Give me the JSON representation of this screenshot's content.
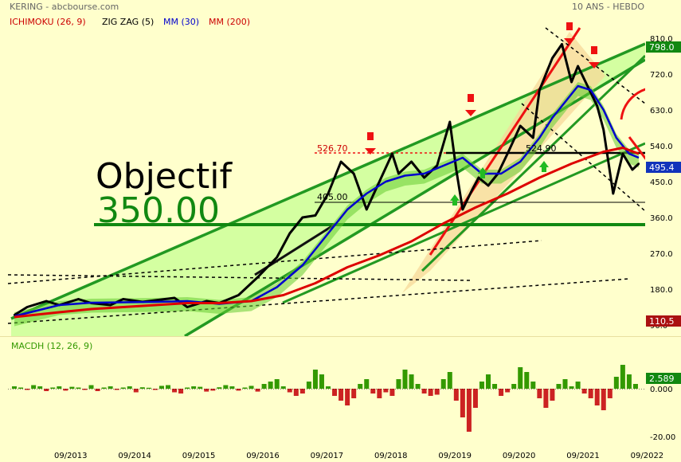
{
  "header": {
    "symbol": "KERING - abcbourse.com",
    "period": "10 ANS - HEBDO",
    "legend": [
      {
        "label": "ICHIMOKU (26, 9)",
        "color": "#cc0000"
      },
      {
        "label": "ZIG ZAG (5)",
        "color": "#000000"
      },
      {
        "label": "MM (30)",
        "color": "#0000cc"
      },
      {
        "label": "MM (200)",
        "color": "#cc0000"
      }
    ]
  },
  "annotations": {
    "objectif_label": "Objectif",
    "objectif_value": "350.00",
    "level_1": "526.70",
    "level_2": "405.00",
    "level_3": "524.90"
  },
  "price_badges": {
    "max": "798.0",
    "last": "495.4",
    "min": "110.5"
  },
  "macd_panel": {
    "label": "MACDH (12, 26, 9)",
    "last": "2.589"
  },
  "colors": {
    "background": "#ffffcc",
    "channel_fill": "#ccff99",
    "channel_line": "#229922",
    "price": "#000000",
    "ma30": "#0000cc",
    "ma200": "#dd0000",
    "cloud": "#66cc33",
    "macd_pos": "#339900",
    "macd_neg": "#cc2222"
  },
  "chart_data": [
    {
      "type": "line",
      "title": "",
      "x_ticks": [
        "09/2013",
        "09/2014",
        "09/2015",
        "09/2016",
        "09/2017",
        "09/2018",
        "09/2019",
        "09/2020",
        "09/2021",
        "09/2022"
      ],
      "y_ticks": [
        "810.0",
        "720.0",
        "630.0",
        "540.0",
        "450.0",
        "360.0",
        "270.0",
        "180.0",
        "90.0"
      ],
      "ylim": [
        90,
        810
      ],
      "xlim": [
        2012.75,
        2022.6
      ],
      "series": [
        {
          "name": "",
          "role": "price",
          "x": [
            2012.8,
            2013.0,
            2013.3,
            2013.5,
            2013.8,
            2014.0,
            2014.3,
            2014.5,
            2014.8,
            2015.0,
            2015.3,
            2015.5,
            2015.8,
            2016.0,
            2016.3,
            2016.6,
            2016.9,
            2017.1,
            2017.3,
            2017.5,
            2017.7,
            2017.9,
            2018.1,
            2018.3,
            2018.5,
            2018.7,
            2018.8,
            2019.0,
            2019.2,
            2019.4,
            2019.6,
            2019.7,
            2019.8,
            2019.95,
            2020.05,
            2020.2,
            2020.35,
            2020.5,
            2020.7,
            2020.9,
            2021.0,
            2021.2,
            2021.35,
            2021.5,
            2021.6,
            2021.75,
            2021.9,
            2022.0,
            2022.15,
            2022.3,
            2022.45,
            2022.55
          ],
          "values": [
            115,
            135,
            150,
            140,
            155,
            145,
            140,
            155,
            148,
            152,
            158,
            135,
            150,
            145,
            165,
            210,
            260,
            320,
            360,
            365,
            420,
            500,
            470,
            380,
            450,
            520,
            470,
            500,
            460,
            490,
            600,
            480,
            380,
            430,
            460,
            440,
            470,
            520,
            590,
            560,
            680,
            760,
            795,
            700,
            740,
            690,
            640,
            580,
            420,
            520,
            480,
            495
          ]
        },
        {
          "name": "",
          "role": "ma30",
          "x": [
            2012.8,
            2013.5,
            2014.0,
            2014.5,
            2015.0,
            2015.5,
            2016.0,
            2016.5,
            2016.9,
            2017.3,
            2017.7,
            2018.0,
            2018.3,
            2018.6,
            2018.9,
            2019.2,
            2019.5,
            2019.8,
            2020.1,
            2020.4,
            2020.7,
            2021.0,
            2021.2,
            2021.4,
            2021.6,
            2021.8,
            2022.0,
            2022.2,
            2022.4,
            2022.55
          ],
          "values": [
            112,
            140,
            146,
            147,
            148,
            150,
            143,
            150,
            185,
            240,
            320,
            380,
            420,
            450,
            465,
            470,
            490,
            510,
            470,
            470,
            500,
            560,
            610,
            650,
            690,
            680,
            630,
            560,
            520,
            510
          ]
        },
        {
          "name": "",
          "role": "ma200",
          "x": [
            2012.8,
            2013.5,
            2014.0,
            2014.5,
            2015.0,
            2015.5,
            2016.0,
            2016.5,
            2017.0,
            2017.5,
            2018.0,
            2018.5,
            2019.0,
            2019.5,
            2020.0,
            2020.5,
            2021.0,
            2021.5,
            2022.0,
            2022.3,
            2022.55
          ],
          "values": [
            110,
            122,
            130,
            135,
            140,
            145,
            145,
            150,
            165,
            195,
            235,
            265,
            300,
            345,
            385,
            420,
            460,
            495,
            525,
            535,
            520
          ]
        }
      ]
    },
    {
      "type": "bar",
      "title": "",
      "y_ticks": [
        "0.000",
        "-20.00"
      ],
      "ylim": [
        -22,
        12
      ],
      "x": [
        2012.8,
        2012.9,
        2013.0,
        2013.1,
        2013.2,
        2013.3,
        2013.4,
        2013.5,
        2013.6,
        2013.7,
        2013.8,
        2013.9,
        2014.0,
        2014.1,
        2014.2,
        2014.3,
        2014.4,
        2014.5,
        2014.6,
        2014.7,
        2014.8,
        2014.9,
        2015.0,
        2015.1,
        2015.2,
        2015.3,
        2015.4,
        2015.5,
        2015.6,
        2015.7,
        2015.8,
        2015.9,
        2016.0,
        2016.1,
        2016.2,
        2016.3,
        2016.4,
        2016.5,
        2016.6,
        2016.7,
        2016.8,
        2016.9,
        2017.0,
        2017.1,
        2017.2,
        2017.3,
        2017.4,
        2017.5,
        2017.6,
        2017.7,
        2017.8,
        2017.9,
        2018.0,
        2018.1,
        2018.2,
        2018.3,
        2018.4,
        2018.5,
        2018.6,
        2018.7,
        2018.8,
        2018.9,
        2019.0,
        2019.1,
        2019.2,
        2019.3,
        2019.4,
        2019.5,
        2019.6,
        2019.7,
        2019.8,
        2019.9,
        2020.0,
        2020.1,
        2020.2,
        2020.3,
        2020.4,
        2020.5,
        2020.6,
        2020.7,
        2020.8,
        2020.9,
        2021.0,
        2021.1,
        2021.2,
        2021.3,
        2021.4,
        2021.5,
        2021.6,
        2021.7,
        2021.8,
        2021.9,
        2022.0,
        2022.1,
        2022.2,
        2022.3,
        2022.4,
        2022.5
      ],
      "values": [
        1,
        0.5,
        -0.5,
        1.5,
        1,
        -1,
        0.5,
        1,
        -0.8,
        0.8,
        0.5,
        -0.5,
        1.5,
        -1,
        0.5,
        1,
        -0.5,
        0.5,
        1,
        -1.5,
        0.6,
        0.4,
        -0.5,
        1.2,
        1.5,
        -1.5,
        -2,
        0.5,
        1,
        0.8,
        -1.2,
        -0.8,
        0.6,
        1.5,
        1,
        -0.8,
        0.5,
        1.2,
        -1.2,
        2,
        3,
        4,
        1,
        -1.5,
        -3,
        -2,
        3,
        8,
        6,
        1,
        -3,
        -5,
        -7,
        -4,
        2,
        4,
        -2,
        -4,
        -1.5,
        -3,
        4,
        8,
        6,
        2,
        -2,
        -3,
        -2.5,
        4,
        7,
        -5,
        -12,
        -18,
        -8,
        3,
        6,
        2,
        -3,
        -1.5,
        2,
        9,
        7,
        3,
        -4,
        -8,
        -5,
        2,
        4,
        1,
        3,
        -2,
        -4,
        -7,
        -9,
        -4,
        5,
        10,
        6,
        2
      ]
    }
  ]
}
